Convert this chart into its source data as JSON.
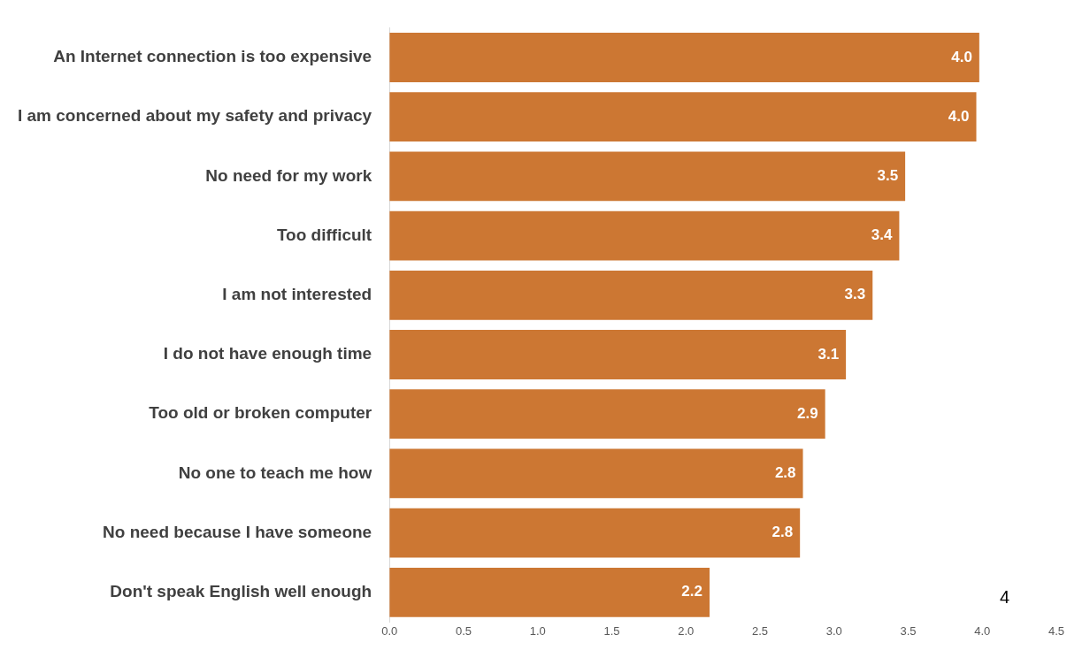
{
  "chart_data": {
    "type": "bar",
    "orientation": "horizontal",
    "categories": [
      "An Internet connection is too expensive",
      "I am concerned about my safety and privacy",
      "No need for my work",
      "Too difficult",
      "I am not interested",
      "I do not have enough time",
      "Too old or broken computer",
      "No one to teach me how",
      "No need because I have someone",
      "Don't speak English well enough"
    ],
    "values": [
      3.98,
      3.96,
      3.48,
      3.44,
      3.26,
      3.08,
      2.94,
      2.79,
      2.77,
      2.16
    ],
    "value_labels": [
      "4.0",
      "4.0",
      "3.5",
      "3.4",
      "3.3",
      "3.1",
      "2.9",
      "2.8",
      "2.8",
      "2.2"
    ],
    "color": "#cc7733",
    "xlim": [
      0,
      4.5
    ],
    "xticks": [
      {
        "value": 0,
        "label": "0.0"
      },
      {
        "value": 0.5,
        "label": "0.5"
      },
      {
        "value": 1,
        "label": "1.0"
      },
      {
        "value": 1.5,
        "label": "1.5"
      },
      {
        "value": 2,
        "label": "2.0"
      },
      {
        "value": 2.5,
        "label": "2.5"
      },
      {
        "value": 3,
        "label": "3.0"
      },
      {
        "value": 3.5,
        "label": "3.5"
      },
      {
        "value": 4,
        "label": "4.0"
      },
      {
        "value": 4.5,
        "label": "4.5"
      }
    ],
    "grid": false,
    "legend": false,
    "annotations": [
      "4"
    ]
  }
}
